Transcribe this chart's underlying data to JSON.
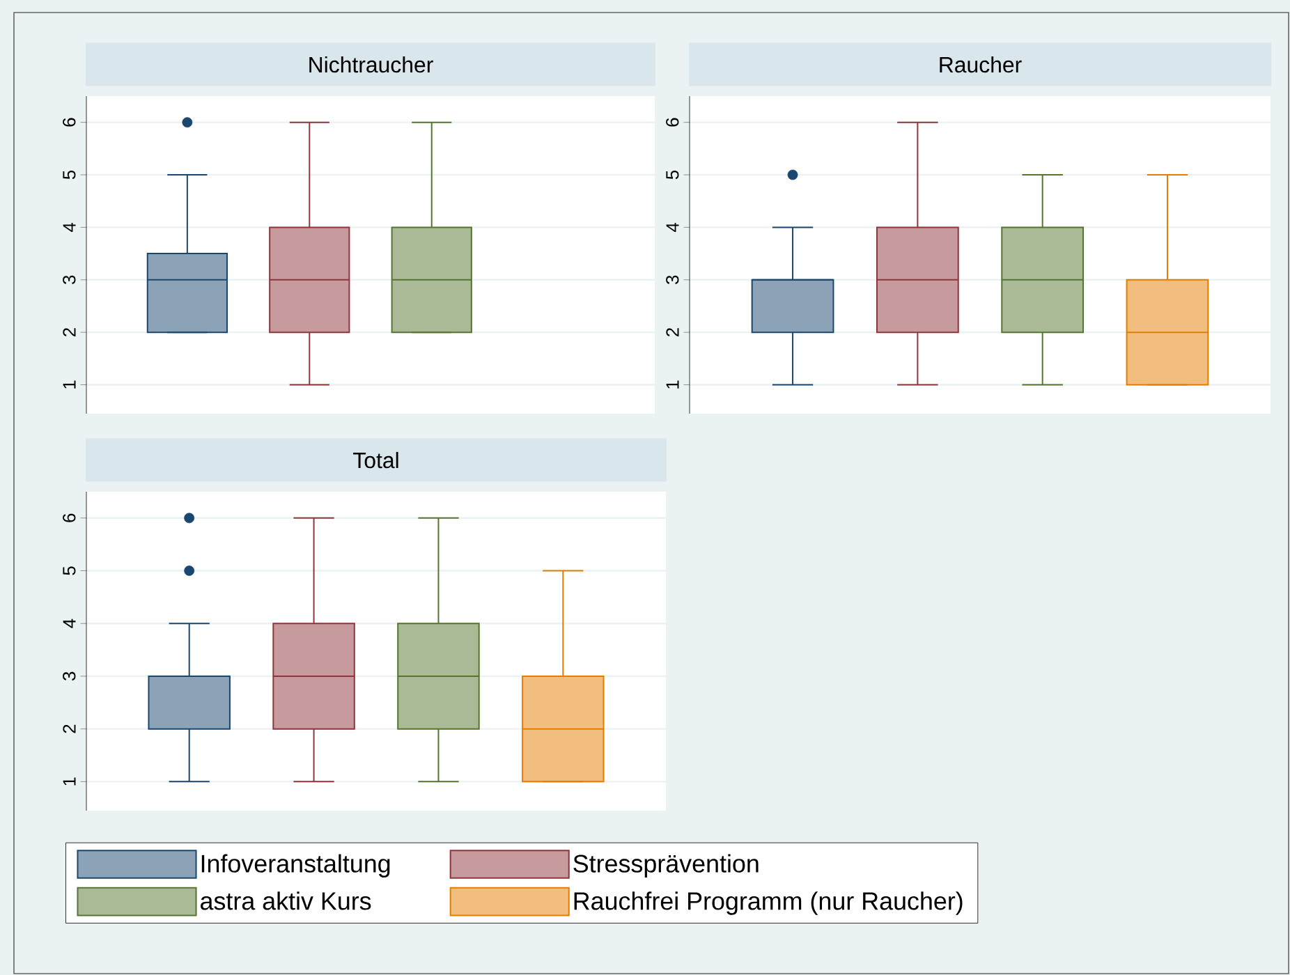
{
  "chart_data": [
    {
      "type": "box",
      "title": "Nichtraucher",
      "categories": [
        null
      ],
      "ylim": [
        0.45,
        6.5
      ],
      "yticks": [
        1,
        2,
        3,
        4,
        5,
        6
      ],
      "grid": "y",
      "legend": false,
      "series": [
        {
          "color": "#1a476f",
          "boxes": [
            {
              "low": 2,
              "q1": 2,
              "median": 3,
              "q3": 3.5,
              "high": 5,
              "outliers": [
                6
              ]
            }
          ]
        },
        {
          "color": "#90353b",
          "boxes": [
            {
              "low": 1,
              "q1": 2,
              "median": 3,
              "q3": 4,
              "high": 6
            }
          ]
        },
        {
          "color": "#55752f",
          "boxes": [
            {
              "low": 2,
              "q1": 2,
              "median": 3,
              "q3": 4,
              "high": 6
            }
          ]
        },
        {
          "color": "#e37e00",
          "boxes": [
            null
          ]
        }
      ]
    },
    {
      "type": "box",
      "title": "Raucher",
      "categories": [
        null
      ],
      "ylim": [
        0.45,
        6.5
      ],
      "yticks": [
        1,
        2,
        3,
        4,
        5,
        6
      ],
      "grid": "y",
      "legend": false,
      "series": [
        {
          "color": "#1a476f",
          "boxes": [
            {
              "low": 1,
              "q1": 2,
              "median": 3,
              "q3": 3,
              "high": 4,
              "outliers": [
                5
              ]
            }
          ]
        },
        {
          "color": "#90353b",
          "boxes": [
            {
              "low": 1,
              "q1": 2,
              "median": 3,
              "q3": 4,
              "high": 6
            }
          ]
        },
        {
          "color": "#55752f",
          "boxes": [
            {
              "low": 1,
              "q1": 2,
              "median": 3,
              "q3": 4,
              "high": 5
            }
          ]
        },
        {
          "color": "#e37e00",
          "boxes": [
            {
              "low": 1,
              "q1": 1,
              "median": 2,
              "q3": 3,
              "high": 5
            }
          ]
        }
      ]
    },
    {
      "type": "box",
      "title": "Total",
      "categories": [
        null
      ],
      "ylim": [
        0.45,
        6.5
      ],
      "yticks": [
        1,
        2,
        3,
        4,
        5,
        6
      ],
      "grid": "y",
      "legend": "bottom",
      "series": [
        {
          "name": "Infoveranstaltung",
          "color": "#1a476f",
          "boxes": [
            {
              "low": 1,
              "q1": 2,
              "median": 3,
              "q3": 3,
              "high": 4,
              "outliers": [
                5,
                6
              ]
            }
          ]
        },
        {
          "name": "Stressprävention",
          "color": "#90353b",
          "boxes": [
            {
              "low": 1,
              "q1": 2,
              "median": 3,
              "q3": 4,
              "high": 6
            }
          ]
        },
        {
          "name": "astra aktiv Kurs",
          "color": "#55752f",
          "boxes": [
            {
              "low": 1,
              "q1": 2,
              "median": 3,
              "q3": 4,
              "high": 6
            }
          ]
        },
        {
          "name": "Rauchfrei Programm (nur Raucher)",
          "color": "#e37e00",
          "boxes": [
            {
              "low": 1,
              "q1": 1,
              "median": 2,
              "q3": 3,
              "high": 5
            }
          ]
        }
      ]
    }
  ]
}
